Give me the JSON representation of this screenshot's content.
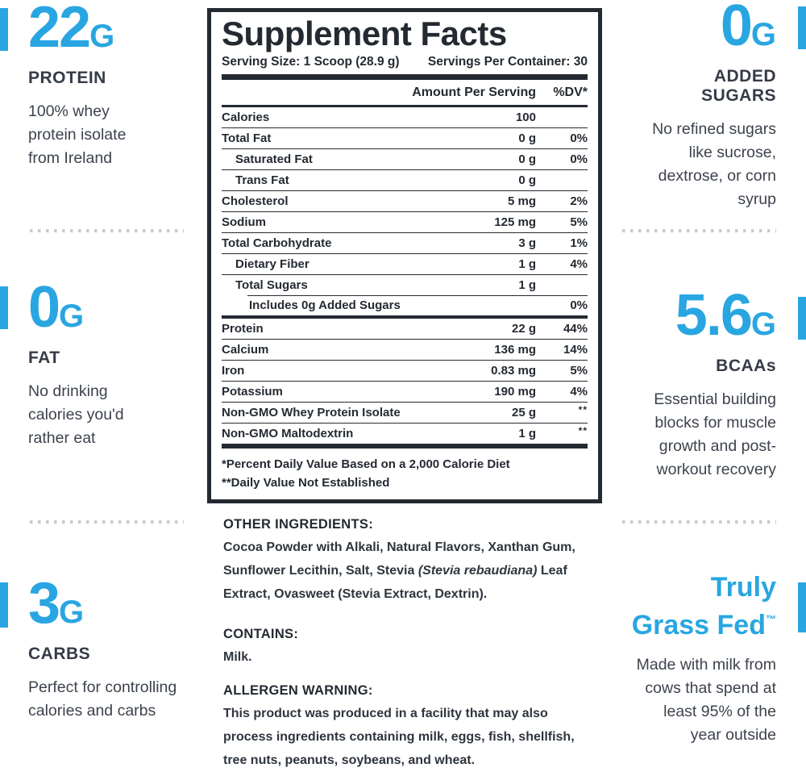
{
  "colors": {
    "accent": "#29A6E2",
    "panel_ink": "#242A32",
    "heading_ink": "#353B47",
    "body_ink": "#3C434D",
    "dots": "#C5CBD1"
  },
  "highlights_left": [
    {
      "value": "22",
      "unit": "G",
      "label": "PROTEIN",
      "description": "100% whey protein isolate from Ireland"
    },
    {
      "value": "0",
      "unit": "G",
      "label": "FAT",
      "description": "No drinking calories you'd rather eat"
    },
    {
      "value": "3",
      "unit": "G",
      "label": "CARBS",
      "description": "Perfect for controlling calories and carbs"
    }
  ],
  "highlights_right": [
    {
      "value": "0",
      "unit": "G",
      "label": "ADDED SUGARS",
      "description": "No refined sugars like sucrose, dextrose, or corn syrup"
    },
    {
      "value": "5.6",
      "unit": "G",
      "label": "BCAAs",
      "description": "Essential building blocks for muscle growth and post-workout recovery"
    },
    {
      "headline_lines": [
        "Truly",
        "Grass Fed"
      ],
      "trademark": "™",
      "description": "Made with milk from cows that spend at least 95% of the year outside"
    }
  ],
  "supplement_facts": {
    "title": "Supplement Facts",
    "serving_size": "Serving Size: 1 Scoop (28.9 g)",
    "servings_per_container": "Servings Per Container: 30",
    "columns": {
      "amount": "Amount Per Serving",
      "dv": "%DV*"
    },
    "rows": [
      {
        "name": "Calories",
        "amount": "100",
        "dv": "",
        "indent": 0
      },
      {
        "name": "Total Fat",
        "amount": "0 g",
        "dv": "0%",
        "indent": 0
      },
      {
        "name": "Saturated Fat",
        "amount": "0 g",
        "dv": "0%",
        "indent": 1
      },
      {
        "name": "Trans Fat",
        "amount": "0 g",
        "dv": "",
        "indent": 1
      },
      {
        "name": "Cholesterol",
        "amount": "5 mg",
        "dv": "2%",
        "indent": 0
      },
      {
        "name": "Sodium",
        "amount": "125 mg",
        "dv": "5%",
        "indent": 0
      },
      {
        "name": "Total Carbohydrate",
        "amount": "3 g",
        "dv": "1%",
        "indent": 0
      },
      {
        "name": "Dietary Fiber",
        "amount": "1 g",
        "dv": "4%",
        "indent": 1
      },
      {
        "name": "Total Sugars",
        "amount": "1 g",
        "dv": "",
        "indent": 1
      },
      {
        "name": "Includes 0g Added Sugars",
        "amount": "",
        "dv": "0%",
        "indent": 2
      },
      {
        "name": "Protein",
        "amount": "22 g",
        "dv": "44%",
        "indent": 0
      },
      {
        "name": "Calcium",
        "amount": "136 mg",
        "dv": "14%",
        "indent": 0
      },
      {
        "name": "Iron",
        "amount": "0.83 mg",
        "dv": "5%",
        "indent": 0
      },
      {
        "name": "Potassium",
        "amount": "190 mg",
        "dv": "4%",
        "indent": 0
      },
      {
        "name": "Non-GMO Whey Protein Isolate",
        "amount": "25 g",
        "dv": "**",
        "indent": 0
      },
      {
        "name": "Non-GMO Maltodextrin",
        "amount": "1 g",
        "dv": "**",
        "indent": 0
      }
    ],
    "footnotes": [
      "*Percent Daily Value Based on a 2,000 Calorie Diet",
      "**Daily Value Not Established"
    ]
  },
  "other_ingredients": {
    "title": "OTHER INGREDIENTS:",
    "segments": [
      {
        "text": "Cocoa Powder with Alkali, Natural Flavors, Xanthan Gum, Sunflower Lecithin, Salt, Stevia ",
        "italic": false
      },
      {
        "text": "(Stevia rebaudiana)",
        "italic": true
      },
      {
        "text": " Leaf Extract, Ovasweet (Stevia Extract, Dextrin).",
        "italic": false
      }
    ]
  },
  "contains": {
    "title": "CONTAINS:",
    "text": "Milk."
  },
  "allergen_warning": {
    "title": "ALLERGEN WARNING:",
    "text": "This product was produced in a facility that may also process ingredients containing milk, eggs, fish, shellfish, tree nuts, peanuts, soybeans, and wheat."
  }
}
